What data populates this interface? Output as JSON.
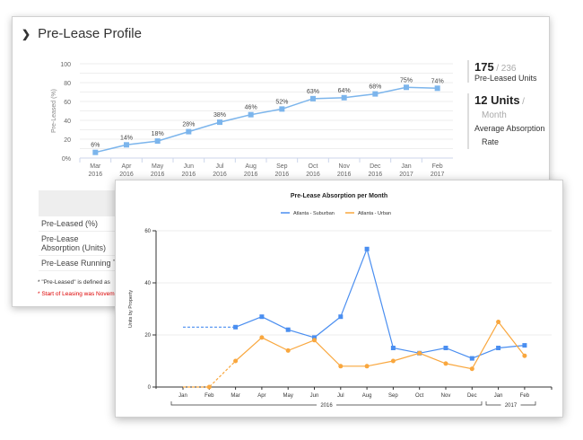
{
  "profile": {
    "title": "Pre-Lease Profile",
    "stats": {
      "units_value": "175",
      "units_total": "/ 236",
      "units_label": "Pre-Leased Units",
      "absorption_value": "12 Units",
      "absorption_sep": "/",
      "absorption_unit": "Month",
      "absorption_label": "Average Absorption",
      "absorption_label2": "Rate"
    },
    "table": {
      "rows": [
        "Pre-Leased (%)",
        "Pre-Lease Absorption (Units)",
        "Pre-Lease Running Total"
      ]
    },
    "notes": [
      "* \"Pre-Leased\" is defined as",
      "* Start of Leasing was November"
    ]
  },
  "chart_data": [
    {
      "type": "line",
      "ylabel": "Pre-Leased (%)",
      "ylim": [
        0,
        100
      ],
      "yticks": [
        "0%",
        "20",
        "40",
        "60",
        "80",
        "100"
      ],
      "grid": true,
      "categories": [
        "Mar 2016",
        "Apr 2016",
        "May 2016",
        "Jun 2016",
        "Jul 2016",
        "Aug 2016",
        "Sep 2016",
        "Oct 2016",
        "Nov 2016",
        "Dec 2016",
        "Jan 2017",
        "Feb 2017"
      ],
      "values": [
        6,
        14,
        18,
        28,
        38,
        46,
        52,
        63,
        64,
        68,
        75,
        74
      ],
      "labels": [
        "6%",
        "14%",
        "18%",
        "28%",
        "38%",
        "46%",
        "52%",
        "63%",
        "64%",
        "68%",
        "75%",
        "74%"
      ],
      "color": "#7cb5ec"
    },
    {
      "type": "line",
      "title": "Pre-Lease Absorption per Month",
      "ylabel": "Units by Property",
      "ylim": [
        0,
        60
      ],
      "yticks": [
        "0",
        "20",
        "40",
        "60"
      ],
      "grid": true,
      "legend": "top",
      "categories": [
        "Jan",
        "Feb",
        "Mar",
        "Apr",
        "May",
        "Jun",
        "Jul",
        "Aug",
        "Sep",
        "Oct",
        "Nov",
        "Dec",
        "Jan",
        "Feb"
      ],
      "years": [
        "2016",
        "2017"
      ],
      "series": [
        {
          "name": "Atlanta - Suburban",
          "color": "#4a8ef0",
          "values": [
            23,
            23,
            23,
            27,
            22,
            19,
            27,
            53,
            15,
            13,
            15,
            11,
            15,
            16
          ]
        },
        {
          "name": "Atlanta - Urban",
          "color": "#f9a73e",
          "values": [
            0,
            0,
            10,
            19,
            14,
            18,
            8,
            8,
            10,
            13,
            9,
            7,
            25,
            12
          ]
        }
      ]
    }
  ]
}
